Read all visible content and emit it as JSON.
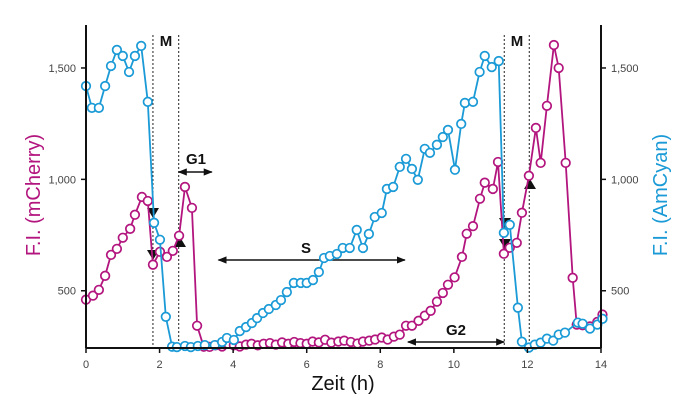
{
  "chart_data": {
    "type": "line",
    "xlabel": "Zeit (h)",
    "ylabel_left": "F.I. (mCherry)",
    "ylabel_right": "F.I. (AmCyan)",
    "xlim": [
      0,
      14
    ],
    "ylim": [
      243,
      1648
    ],
    "x_ticks": [
      "0",
      "2",
      "4",
      "6",
      "8",
      "10",
      "12",
      "14"
    ],
    "y_ticks_left": [
      {
        "v": 500,
        "label": "500"
      },
      {
        "v": 1000,
        "label": "1,000"
      },
      {
        "v": 1500,
        "label": "1,500"
      }
    ],
    "y_ticks_right": [
      {
        "v": 500,
        "label": "500"
      },
      {
        "v": 1000,
        "label": "1,000"
      },
      {
        "v": 1500,
        "label": "1,500"
      }
    ],
    "grid": false,
    "colors": {
      "mCherry": "#b3157e",
      "AmCyan": "#1a9ad6"
    },
    "series": [
      {
        "key": "mCherry",
        "x": [
          0,
          0.19,
          0.35,
          0.52,
          0.68,
          0.84,
          1.0,
          1.2,
          1.33,
          1.52,
          1.68,
          1.82,
          2.01,
          2.2,
          2.36,
          2.53,
          2.69,
          2.88,
          3.02,
          3.2,
          3.36,
          3.52,
          3.7,
          3.86,
          4.02,
          4.18,
          4.35,
          4.5,
          4.67,
          4.83,
          5.0,
          5.16,
          5.33,
          5.5,
          5.66,
          5.83,
          6.0,
          6.16,
          6.33,
          6.5,
          6.67,
          6.86,
          7.02,
          7.2,
          7.38,
          7.53,
          7.7,
          7.86,
          8.04,
          8.2,
          8.37,
          8.53,
          8.7,
          8.86,
          9.04,
          9.21,
          9.37,
          9.54,
          9.7,
          9.84,
          10.02,
          10.22,
          10.35,
          10.52,
          10.71,
          10.84,
          11.06,
          11.2,
          11.36,
          11.52,
          11.71,
          11.85,
          12.04,
          12.23,
          12.36,
          12.53,
          12.72,
          12.85,
          13.04,
          13.23,
          13.34,
          13.5,
          13.7,
          13.9,
          14.04
        ],
        "y": [
          460,
          478,
          504,
          567,
          661,
          688,
          738,
          778,
          841,
          921,
          903,
          617,
          675,
          652,
          679,
          747,
          966,
          872,
          343,
          249,
          248,
          255,
          250,
          262,
          255,
          250,
          258,
          262,
          255,
          262,
          265,
          258,
          268,
          262,
          270,
          265,
          262,
          272,
          268,
          280,
          267,
          272,
          276,
          270,
          263,
          272,
          276,
          281,
          290,
          281,
          294,
          303,
          343,
          343,
          365,
          388,
          410,
          451,
          490,
          527,
          560,
          652,
          756,
          790,
          913,
          985,
          957,
          1078,
          666,
          693,
          715,
          850,
          1016,
          1231,
          1074,
          1330,
          1603,
          1500,
          1074,
          558,
          348,
          345,
          340,
          360,
          393
        ]
      },
      {
        "key": "AmCyan",
        "x": [
          0,
          0.16,
          0.35,
          0.52,
          0.68,
          0.84,
          1.0,
          1.17,
          1.33,
          1.5,
          1.68,
          1.85,
          2.01,
          2.17,
          2.34,
          2.47,
          2.69,
          2.85,
          3.04,
          3.23,
          3.5,
          3.7,
          3.83,
          4.02,
          4.18,
          4.35,
          4.51,
          4.65,
          4.81,
          4.97,
          5.16,
          5.3,
          5.46,
          5.65,
          5.84,
          6.0,
          6.17,
          6.33,
          6.47,
          6.63,
          6.82,
          6.98,
          7.17,
          7.36,
          7.53,
          7.69,
          7.85,
          8.04,
          8.18,
          8.35,
          8.53,
          8.7,
          8.86,
          9.02,
          9.21,
          9.35,
          9.54,
          9.7,
          9.84,
          10.03,
          10.2,
          10.3,
          10.52,
          10.7,
          10.84,
          11.03,
          11.22,
          11.36,
          11.52,
          11.74,
          11.85,
          12.04,
          12.2,
          12.36,
          12.53,
          12.7,
          12.85,
          13.02,
          13.37,
          13.5,
          13.7,
          13.9,
          14.04
        ],
        "y": [
          1419,
          1321,
          1321,
          1419,
          1509,
          1581,
          1554,
          1482,
          1554,
          1599,
          1348,
          805,
          729,
          383,
          249,
          247,
          252,
          247,
          252,
          256,
          256,
          270,
          288,
          279,
          319,
          337,
          355,
          377,
          400,
          418,
          436,
          458,
          494,
          535,
          535,
          535,
          548,
          584,
          647,
          656,
          665,
          692,
          692,
          773,
          692,
          755,
          831,
          849,
          957,
          966,
          1056,
          1092,
          1047,
          998,
          1137,
          1119,
          1155,
          1190,
          1222,
          1043,
          1249,
          1343,
          1348,
          1482,
          1554,
          1504,
          1531,
          760,
          796,
          424,
          271,
          245,
          258,
          267,
          285,
          276,
          303,
          312,
          357,
          352,
          330,
          348,
          374
        ]
      }
    ],
    "annotations": {
      "m_label_1": "M",
      "m_label_2": "M",
      "g1": "G1",
      "s": "S",
      "g2": "G2",
      "dashed_lines_h": [
        1.82,
        2.52,
        11.37,
        12.05
      ],
      "g1_span_h": [
        2.52,
        3.42
      ],
      "s_span_h": [
        3.6,
        8.67
      ],
      "g2_span_h": [
        8.75,
        11.37
      ]
    }
  }
}
